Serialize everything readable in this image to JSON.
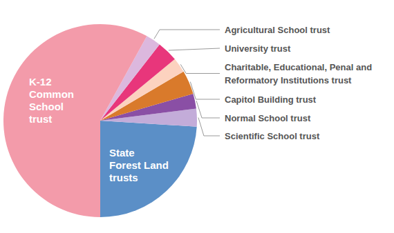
{
  "chart_data": {
    "type": "pie",
    "categories": [
      "State Forest Land trusts",
      "Scientific School trust",
      "Normal School trust",
      "Capitol Building trust",
      "Charitable, Educational, Penal and Reformatory Institutions trust",
      "University trust",
      "Agricultural School trust",
      "K-12 Common School trust"
    ],
    "values": [
      24,
      3,
      2.5,
      4,
      2.5,
      3.5,
      2.5,
      58
    ],
    "colors": [
      "#5b8fc7",
      "#c3acd9",
      "#8a4fa5",
      "#d97a2b",
      "#fcd2bf",
      "#e8367b",
      "#dcb8de",
      "#f39baa"
    ]
  }
}
